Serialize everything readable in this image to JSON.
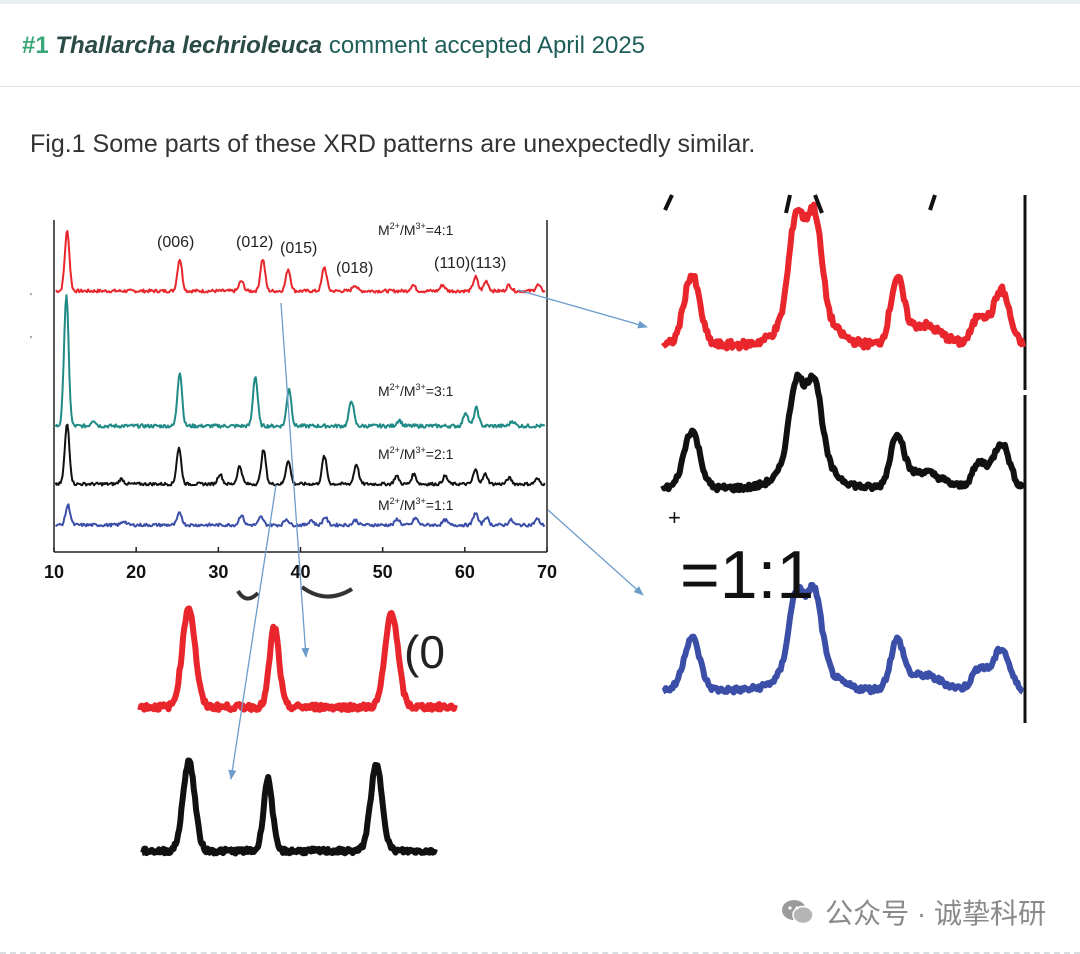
{
  "header": {
    "number": "#1",
    "species": "Thallarcha lechrioleuca",
    "status": "comment accepted April 2025"
  },
  "caption": "Fig.1 Some parts of these XRD patterns are unexpectedly similar.",
  "chart_data": {
    "type": "line",
    "title": "",
    "xlabel": "",
    "ylabel": "",
    "xlim": [
      10,
      70
    ],
    "x_ticks": [
      "10",
      "20",
      "30",
      "40",
      "50",
      "60",
      "70"
    ],
    "peak_labels": [
      "(006)",
      "(012)",
      "(015)",
      "(018)",
      "(110)(113)"
    ],
    "series": [
      {
        "name": "M2+/M3+=4:1",
        "label_main": "M",
        "label_sup1": "2+",
        "label_mid": "/M",
        "label_sup2": "3+",
        "label_ratio": "=4:1",
        "color": "#e8262b"
      },
      {
        "name": "M2+/M3+=3:1",
        "label_main": "M",
        "label_sup1": "2+",
        "label_mid": "/M",
        "label_sup2": "3+",
        "label_ratio": "=3:1",
        "color": "#1f8a86"
      },
      {
        "name": "M2+/M3+=2:1",
        "label_main": "M",
        "label_sup1": "2+",
        "label_mid": "/M",
        "label_sup2": "3+",
        "label_ratio": "=2:1",
        "color": "#111111"
      },
      {
        "name": "M2+/M3+=1:1",
        "label_main": "M",
        "label_sup1": "2+",
        "label_mid": "/M",
        "label_sup2": "3+",
        "label_ratio": "=1:1",
        "color": "#3b4fa8"
      }
    ],
    "zoom_ratio_label": "=1:1",
    "zoom_partial_label": "(0"
  },
  "watermark": {
    "text": "公众号 · 诚挚科研"
  },
  "colors": {
    "red": "#e8262b",
    "teal": "#1f8a86",
    "black": "#111111",
    "blue": "#3b4fa8",
    "arrow": "#6c9ccb"
  }
}
